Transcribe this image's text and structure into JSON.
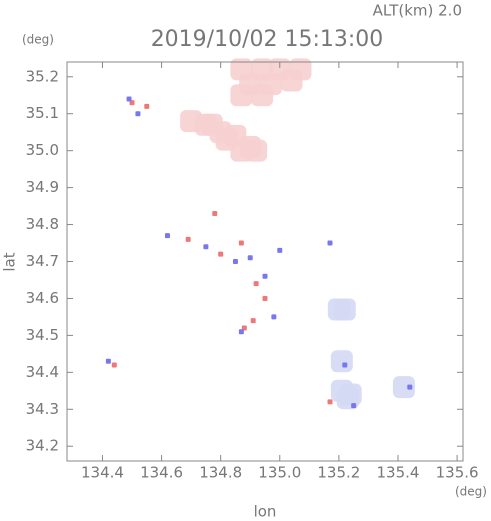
{
  "chart_data": {
    "type": "scatter",
    "title": "2019/10/02 15:13:00",
    "subtitle": "ALT(km) 2.0",
    "x_label": "lon",
    "y_label": "lat",
    "x_unit": "(deg)",
    "y_unit": "(deg)",
    "xlim": [
      134.28,
      135.62
    ],
    "ylim": [
      34.16,
      35.24
    ],
    "xticks": [
      134.4,
      134.6,
      134.8,
      {
        "value": 135,
        "label": "135.0"
      },
      135.2,
      135.4,
      135.6
    ],
    "yticks": [
      34.2,
      34.3,
      34.4,
      34.5,
      34.6,
      34.7,
      34.8,
      34.9,
      {
        "value": 35,
        "label": "35.0"
      },
      35.1,
      35.2
    ],
    "series": [
      {
        "color": "#f6d0d0",
        "x": [
          134.87,
          134.94,
          135.0,
          135.07,
          134.9,
          134.97,
          135.04,
          134.87,
          134.94,
          134.7,
          134.75,
          134.8,
          134.85,
          134.9,
          134.87,
          134.82,
          134.77,
          134.92
        ],
        "y": [
          35.22,
          35.22,
          35.22,
          35.22,
          35.18,
          35.18,
          35.19,
          35.15,
          35.15,
          35.08,
          35.07,
          35.05,
          35.04,
          35.01,
          35.0,
          35.03,
          35.07,
          35.0
        ]
      },
      {
        "color": "#d4d8f4",
        "x": [
          135.2,
          135.22,
          135.21,
          135.24,
          135.23,
          135.42,
          135.21
        ],
        "y": [
          34.57,
          34.57,
          34.35,
          34.34,
          34.33,
          34.36,
          34.43
        ]
      },
      {
        "color": "#ee7878",
        "x": [
          134.44,
          134.78,
          134.8,
          134.87,
          134.92,
          134.88,
          134.91,
          134.95,
          134.5,
          134.55,
          135.17,
          134.69
        ],
        "y": [
          34.42,
          34.83,
          34.72,
          34.75,
          34.64,
          34.52,
          34.54,
          34.6,
          35.13,
          35.12,
          34.32,
          34.76
        ]
      },
      {
        "color": "#7878ee",
        "x": [
          134.42,
          134.52,
          134.49,
          134.62,
          134.75,
          134.85,
          134.9,
          134.95,
          134.87,
          135.0,
          135.25,
          135.44,
          135.22,
          134.98,
          135.17
        ],
        "y": [
          34.43,
          35.1,
          35.14,
          34.77,
          34.74,
          34.7,
          34.71,
          34.66,
          34.51,
          34.73,
          34.31,
          34.36,
          34.42,
          34.55,
          34.75
        ]
      }
    ]
  }
}
